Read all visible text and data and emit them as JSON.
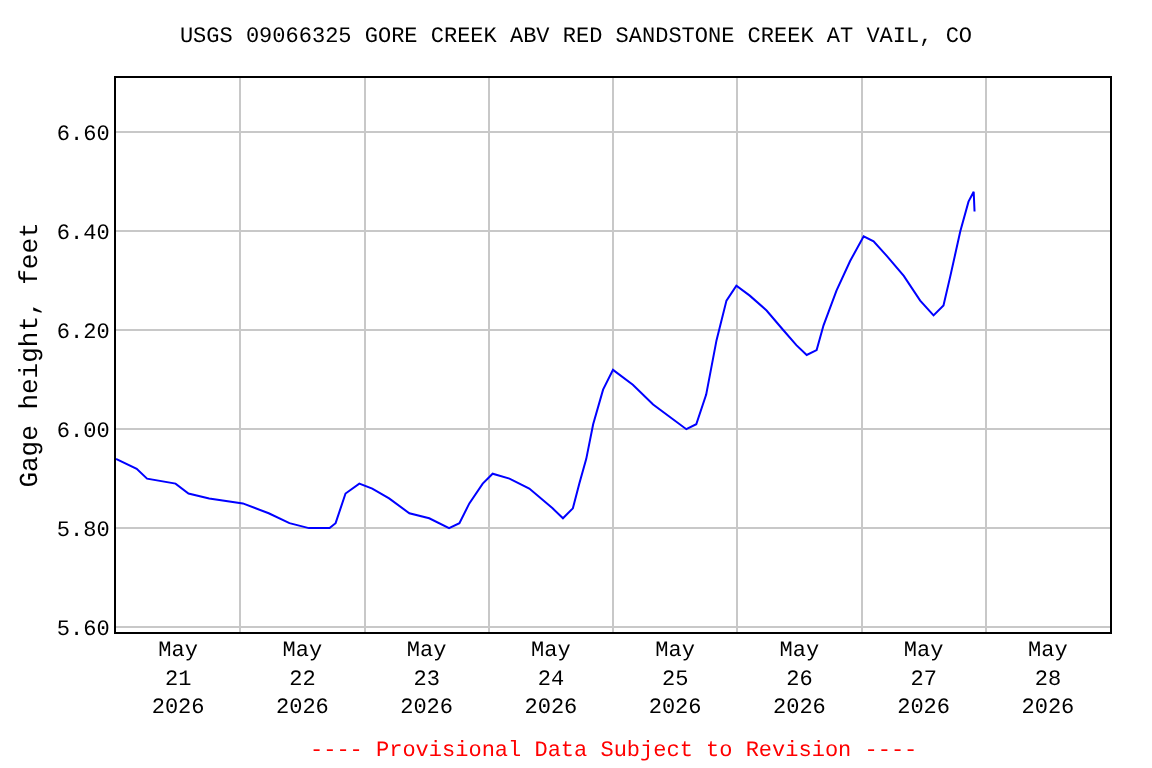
{
  "chart_data": {
    "type": "line",
    "title": "USGS 09066325 GORE CREEK ABV RED SANDSTONE CREEK AT VAIL, CO",
    "ylabel": "Gage height, feet",
    "annotations": [
      "---- Provisional Data Subject to Revision ----"
    ],
    "x": [
      "2026-05-21T00:00",
      "2026-05-21T04:00",
      "2026-05-21T06:00",
      "2026-05-21T11:30",
      "2026-05-21T14:00",
      "2026-05-21T18:00",
      "2026-05-22T00:30",
      "2026-05-22T05:30",
      "2026-05-22T09:30",
      "2026-05-22T13:15",
      "2026-05-22T17:15",
      "2026-05-22T18:25",
      "2026-05-22T20:20",
      "2026-05-22T23:00",
      "2026-05-23T01:30",
      "2026-05-23T04:45",
      "2026-05-23T08:40",
      "2026-05-23T12:30",
      "2026-05-23T16:20",
      "2026-05-23T18:20",
      "2026-05-23T20:15",
      "2026-05-23T22:50",
      "2026-05-24T00:45",
      "2026-05-24T04:00",
      "2026-05-24T07:50",
      "2026-05-24T12:20",
      "2026-05-24T14:20",
      "2026-05-24T16:15",
      "2026-05-24T17:30",
      "2026-05-24T18:50",
      "2026-05-24T20:10",
      "2026-05-24T22:05",
      "2026-05-25T00:00",
      "2026-05-25T03:50",
      "2026-05-25T07:45",
      "2026-05-25T11:35",
      "2026-05-25T14:10",
      "2026-05-25T16:05",
      "2026-05-25T18:00",
      "2026-05-25T20:00",
      "2026-05-25T21:55",
      "2026-05-25T23:50",
      "2026-05-26T02:25",
      "2026-05-26T05:40",
      "2026-05-26T08:55",
      "2026-05-26T11:25",
      "2026-05-26T13:25",
      "2026-05-26T15:20",
      "2026-05-26T16:40",
      "2026-05-26T19:10",
      "2026-05-26T21:48",
      "2026-05-27T00:25",
      "2026-05-27T02:20",
      "2026-05-27T04:55",
      "2026-05-27T08:10",
      "2026-05-27T11:20",
      "2026-05-27T13:55",
      "2026-05-27T15:50",
      "2026-05-27T17:10",
      "2026-05-27T19:05",
      "2026-05-27T20:40",
      "2026-05-27T21:40",
      "2026-05-27T21:50"
    ],
    "series": [
      {
        "color": "#0000ff",
        "values": [
          5.94,
          5.92,
          5.9,
          5.89,
          5.87,
          5.86,
          5.85,
          5.83,
          5.81,
          5.8,
          5.8,
          5.81,
          5.87,
          5.89,
          5.88,
          5.86,
          5.83,
          5.82,
          5.8,
          5.81,
          5.85,
          5.89,
          5.91,
          5.9,
          5.88,
          5.84,
          5.82,
          5.84,
          5.89,
          5.94,
          6.01,
          6.08,
          6.12,
          6.09,
          6.05,
          6.02,
          6.0,
          6.01,
          6.07,
          6.18,
          6.26,
          6.29,
          6.27,
          6.24,
          6.2,
          6.17,
          6.15,
          6.16,
          6.21,
          6.28,
          6.34,
          6.39,
          6.38,
          6.35,
          6.31,
          6.26,
          6.23,
          6.25,
          6.31,
          6.4,
          6.46,
          6.48,
          6.44
        ]
      }
    ],
    "xlim": [
      "2026-05-21T00:00",
      "2026-05-29T00:00"
    ],
    "xticks": [
      {
        "value": "2026-05-21T00:00",
        "label": null
      },
      {
        "value": "2026-05-22T00:00",
        "label": null
      },
      {
        "value": "2026-05-23T00:00",
        "label": null
      },
      {
        "value": "2026-05-24T00:00",
        "label": null
      },
      {
        "value": "2026-05-25T00:00",
        "label": null
      },
      {
        "value": "2026-05-26T00:00",
        "label": null
      },
      {
        "value": "2026-05-27T00:00",
        "label": null
      },
      {
        "value": "2026-05-28T00:00",
        "label": null
      },
      {
        "value": "2026-05-29T00:00",
        "label": null
      },
      {
        "value": "2026-05-21T12:00",
        "label": "May\n21\n2026"
      },
      {
        "value": "2026-05-22T12:00",
        "label": "May\n22\n2026"
      },
      {
        "value": "2026-05-23T12:00",
        "label": "May\n23\n2026"
      },
      {
        "value": "2026-05-24T12:00",
        "label": "May\n24\n2026"
      },
      {
        "value": "2026-05-25T12:00",
        "label": "May\n25\n2026"
      },
      {
        "value": "2026-05-26T12:00",
        "label": "May\n26\n2026"
      },
      {
        "value": "2026-05-27T12:00",
        "label": "May\n27\n2026"
      },
      {
        "value": "2026-05-28T12:00",
        "label": "May\n28\n2026"
      }
    ],
    "ylim": [
      5.59,
      6.71
    ],
    "yticks": [
      {
        "value": 5.6,
        "label": "5.60"
      },
      {
        "value": 5.8,
        "label": "5.80"
      },
      {
        "value": 6.0,
        "label": "6.00"
      },
      {
        "value": 6.2,
        "label": "6.20"
      },
      {
        "value": 6.4,
        "label": "6.40"
      },
      {
        "value": 6.6,
        "label": "6.60"
      }
    ],
    "grid": true,
    "marker": "none",
    "line_style": "solid"
  }
}
